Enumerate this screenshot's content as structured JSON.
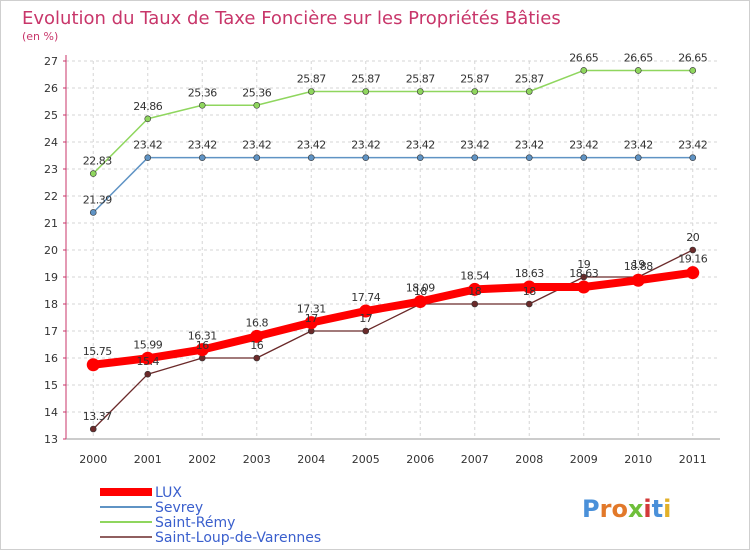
{
  "chart_data": {
    "type": "line",
    "title": "Evolution du Taux de Taxe Foncière sur les Propriétés Bâties",
    "ylabel": "(en %)",
    "xlabel": "",
    "ylim": [
      13,
      27
    ],
    "yticks": [
      13,
      14,
      15,
      16,
      17,
      18,
      19,
      20,
      21,
      22,
      23,
      24,
      25,
      26,
      27
    ],
    "categories": [
      "2000",
      "2001",
      "2002",
      "2003",
      "2004",
      "2005",
      "2006",
      "2007",
      "2008",
      "2009",
      "2010",
      "2011"
    ],
    "series": [
      {
        "name": "LUX",
        "color": "#ff0000",
        "values": [
          15.75,
          15.99,
          16.31,
          16.8,
          17.31,
          17.74,
          18.09,
          18.54,
          18.63,
          18.63,
          18.88,
          19.16
        ],
        "labels": [
          "15.75",
          "15.99",
          "16.31",
          "16.8",
          "17.31",
          "17.74",
          "18.09",
          "18.54",
          "18.63",
          "18.63",
          "18.88",
          "19.16"
        ]
      },
      {
        "name": "Sevrey",
        "color": "#5f93c4",
        "values": [
          21.39,
          23.42,
          23.42,
          23.42,
          23.42,
          23.42,
          23.42,
          23.42,
          23.42,
          23.42,
          23.42,
          23.42
        ],
        "labels": [
          "21.39",
          "23.42",
          "23.42",
          "23.42",
          "23.42",
          "23.42",
          "23.42",
          "23.42",
          "23.42",
          "23.42",
          "23.42",
          "23.42"
        ]
      },
      {
        "name": "Saint-Rémy",
        "color": "#8fd65e",
        "values": [
          22.83,
          24.86,
          25.36,
          25.36,
          25.87,
          25.87,
          25.87,
          25.87,
          25.87,
          26.65,
          26.65,
          26.65
        ],
        "labels": [
          "22.83",
          "24.86",
          "25.36",
          "25.36",
          "25.87",
          "25.87",
          "25.87",
          "25.87",
          "25.87",
          "26.65",
          "26.65",
          "26.65"
        ]
      },
      {
        "name": "Saint-Loup-de-Varennes",
        "color": "#6b2a2a",
        "values": [
          13.37,
          15.4,
          16,
          16,
          17,
          17,
          18,
          18,
          18,
          19,
          19,
          20
        ],
        "labels": [
          "13.37",
          "15.4",
          "16",
          "16",
          "17",
          "17",
          "18",
          "18",
          "18",
          "19",
          "19",
          "20"
        ]
      }
    ]
  },
  "logo": {
    "text": "Proxiti"
  }
}
